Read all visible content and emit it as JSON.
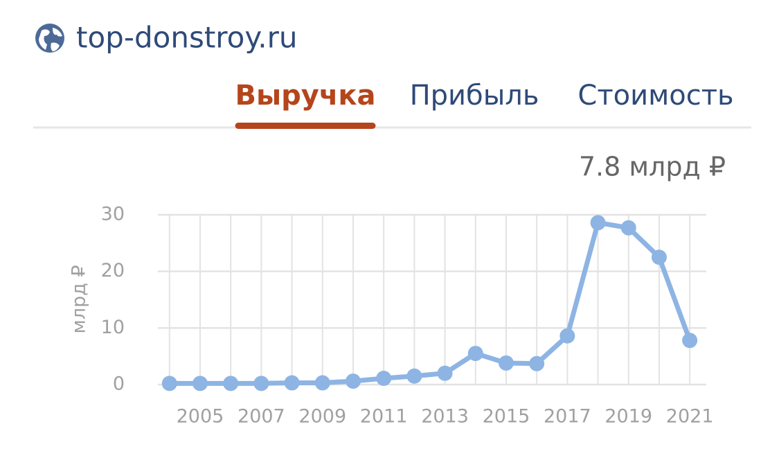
{
  "header": {
    "site": "top-donstroy.ru"
  },
  "tabs": [
    "Выручка",
    "Прибыль",
    "Стоимость"
  ],
  "active_tab": 0,
  "chart_data": {
    "type": "line",
    "value_label": "7.8 млрд ₽",
    "y_label": "млрд ₽",
    "x": [
      2004,
      2005,
      2006,
      2007,
      2008,
      2009,
      2010,
      2011,
      2012,
      2013,
      2014,
      2015,
      2016,
      2017,
      2018,
      2019,
      2020,
      2021
    ],
    "values": [
      0.2,
      0.2,
      0.2,
      0.2,
      0.3,
      0.3,
      0.6,
      1.1,
      1.5,
      2.0,
      5.5,
      3.8,
      3.7,
      8.6,
      28.6,
      27.7,
      22.5,
      7.8
    ],
    "color": "#8db4e3",
    "xlim": [
      2003.62,
      2021.54
    ],
    "ylim": [
      0,
      30
    ],
    "xticks": [
      2005,
      2007,
      2009,
      2011,
      2013,
      2015,
      2017,
      2019,
      2021
    ],
    "yticks": [
      0,
      10,
      20,
      30
    ],
    "grid": true
  }
}
